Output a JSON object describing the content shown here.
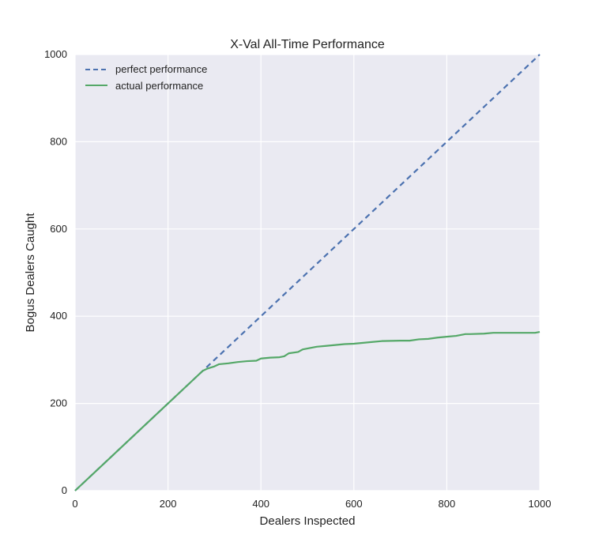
{
  "chart_data": {
    "type": "line",
    "title": "X-Val All-Time Performance",
    "xlabel": "Dealers Inspected",
    "ylabel": "Bogus Dealers Caught",
    "xlim": [
      0,
      1000
    ],
    "ylim": [
      0,
      1000
    ],
    "xticks": [
      0,
      200,
      400,
      600,
      800,
      1000
    ],
    "yticks": [
      0,
      200,
      400,
      600,
      800,
      1000
    ],
    "grid": true,
    "legend_position": "top-left",
    "series": [
      {
        "name": "perfect performance",
        "style": "dashed",
        "color": "#4c72b0",
        "x": [
          0,
          1000
        ],
        "y": [
          0,
          1000
        ]
      },
      {
        "name": "actual performance",
        "style": "solid",
        "color": "#55a868",
        "x": [
          0,
          50,
          100,
          150,
          200,
          250,
          275,
          285,
          300,
          310,
          330,
          350,
          370,
          390,
          400,
          420,
          440,
          450,
          460,
          480,
          490,
          500,
          520,
          540,
          560,
          580,
          600,
          620,
          640,
          660,
          700,
          720,
          740,
          760,
          780,
          800,
          820,
          840,
          850,
          880,
          900,
          950,
          990,
          1000
        ],
        "y": [
          0,
          50,
          100,
          150,
          200,
          250,
          275,
          280,
          285,
          290,
          292,
          295,
          297,
          298,
          303,
          305,
          306,
          308,
          315,
          318,
          324,
          326,
          330,
          332,
          334,
          336,
          337,
          339,
          341,
          343,
          344,
          344,
          347,
          348,
          351,
          353,
          355,
          359,
          359,
          360,
          362,
          362,
          362,
          364
        ]
      }
    ]
  },
  "colors": {
    "plot_background": "#eaeaf2",
    "grid": "#ffffff",
    "perfect": "#4c72b0",
    "actual": "#55a868"
  }
}
